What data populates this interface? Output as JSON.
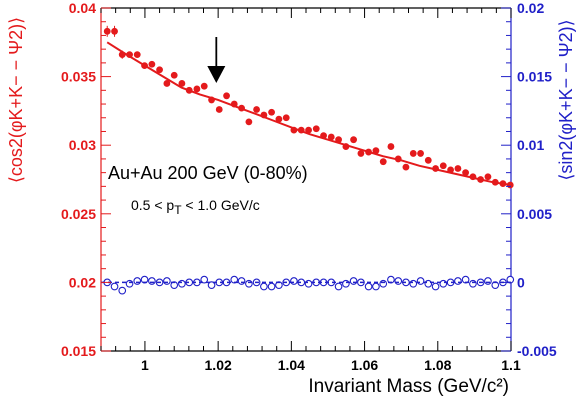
{
  "chart_data": {
    "type": "scatter",
    "xlabel": "Invariant Mass (GeV/c²)",
    "ylabel_left": "⟨cos2(φK+K− − Ψ2)⟩",
    "ylabel_right": "⟨sin2(φK+K− − Ψ2)⟩",
    "xlim": [
      0.988,
      1.1
    ],
    "ylim_left": [
      0.015,
      0.04
    ],
    "ylim_right": [
      -0.005,
      0.02
    ],
    "x_ticks": [
      "1",
      "1.02",
      "1.04",
      "1.06",
      "1.08",
      "1.1"
    ],
    "x_tick_values": [
      1.0,
      1.02,
      1.04,
      1.06,
      1.08,
      1.1
    ],
    "left_ticks": [
      "0.015",
      "0.02",
      "0.025",
      "0.03",
      "0.035",
      "0.04"
    ],
    "left_tick_values": [
      0.015,
      0.02,
      0.025,
      0.03,
      0.035,
      0.04
    ],
    "right_ticks": [
      "-0.005",
      "0",
      "0.005",
      "0.01",
      "0.015",
      "0.02"
    ],
    "right_tick_values": [
      -0.005,
      0,
      0.005,
      0.01,
      0.015,
      0.02
    ],
    "annotations": {
      "system": "Au+Au 200 GeV (0-80%)",
      "pt_prefix": "0.5 < p",
      "pt_sub": "T",
      "pt_suffix": " < 1.0 GeV/c"
    },
    "arrow_at_x": 1.0195,
    "series": [
      {
        "axis": "left",
        "color": "#e41a1c",
        "marker": "filled-circle",
        "x": [
          0.9897,
          0.9917,
          0.9938,
          0.9958,
          0.9979,
          0.9999,
          1.0019,
          1.004,
          1.006,
          1.008,
          1.0101,
          1.0121,
          1.0142,
          1.0162,
          1.0182,
          1.0203,
          1.0223,
          1.0244,
          1.0264,
          1.0284,
          1.0305,
          1.0325,
          1.0346,
          1.0366,
          1.0386,
          1.0407,
          1.0427,
          1.0447,
          1.0468,
          1.0488,
          1.0509,
          1.0529,
          1.0549,
          1.057,
          1.059,
          1.0611,
          1.0631,
          1.0651,
          1.0672,
          1.0692,
          1.0713,
          1.0733,
          1.0753,
          1.0774,
          1.0794,
          1.0815,
          1.0835,
          1.0855,
          1.0876,
          1.0896,
          1.0917,
          1.0937,
          1.0957,
          1.0978,
          1.0998
        ],
        "y": [
          0.0383,
          0.0383,
          0.0366,
          0.0366,
          0.0366,
          0.0358,
          0.0359,
          0.0355,
          0.0345,
          0.0351,
          0.0345,
          0.034,
          0.0341,
          0.0343,
          0.0333,
          0.0326,
          0.0336,
          0.033,
          0.0327,
          0.0317,
          0.0326,
          0.0322,
          0.0324,
          0.0319,
          0.032,
          0.0311,
          0.0311,
          0.0311,
          0.0312,
          0.0307,
          0.0306,
          0.0304,
          0.0299,
          0.0304,
          0.0294,
          0.0295,
          0.0296,
          0.0288,
          0.0299,
          0.029,
          0.0284,
          0.0294,
          0.0294,
          0.0289,
          0.0283,
          0.0285,
          0.0282,
          0.0283,
          0.028,
          0.0277,
          0.0275,
          0.0277,
          0.0273,
          0.0272,
          0.0271
        ],
        "yerr": [
          0.0004,
          0.0004,
          0.0003,
          0.0002,
          0.0002,
          0.0002,
          0.0002,
          0.0002,
          0.0002,
          0.0002,
          0.0002,
          0.0002,
          0.0002,
          0.0002,
          0.0002,
          0.0002,
          0.0002,
          0.0002,
          0.0002,
          0.0002,
          0.0002,
          0.0002,
          0.0002,
          0.0002,
          0.0002,
          0.0002,
          0.0002,
          0.0002,
          0.0002,
          0.0002,
          0.0002,
          0.0002,
          0.0002,
          0.0002,
          0.0002,
          0.0002,
          0.0002,
          0.0002,
          0.0002,
          0.0002,
          0.0002,
          0.0002,
          0.0002,
          0.0002,
          0.0002,
          0.0002,
          0.0002,
          0.0002,
          0.0002,
          0.0002,
          0.0002,
          0.0002,
          0.0002,
          0.0002,
          0.0002
        ]
      },
      {
        "axis": "left",
        "color": "#e41a1c",
        "marker": "line",
        "x": [
          0.9897,
          0.995,
          1.0,
          1.005,
          1.01,
          1.015,
          1.02,
          1.025,
          1.03,
          1.035,
          1.04,
          1.045,
          1.05,
          1.055,
          1.06,
          1.065,
          1.07,
          1.075,
          1.08,
          1.085,
          1.09,
          1.095,
          1.1
        ],
        "y": [
          0.0375,
          0.0366,
          0.0358,
          0.035,
          0.0342,
          0.0337,
          0.0333,
          0.0328,
          0.0323,
          0.0318,
          0.0313,
          0.0308,
          0.0304,
          0.03,
          0.0296,
          0.0292,
          0.0289,
          0.0285,
          0.0282,
          0.0279,
          0.0276,
          0.0273,
          0.0271
        ]
      },
      {
        "axis": "right",
        "color": "#2020c8",
        "marker": "open-circle",
        "x": [
          0.9897,
          0.9917,
          0.9938,
          0.9958,
          0.9979,
          0.9999,
          1.0019,
          1.004,
          1.006,
          1.008,
          1.0101,
          1.0121,
          1.0142,
          1.0162,
          1.0182,
          1.0203,
          1.0223,
          1.0244,
          1.0264,
          1.0284,
          1.0305,
          1.0325,
          1.0346,
          1.0366,
          1.0386,
          1.0407,
          1.0427,
          1.0447,
          1.0468,
          1.0488,
          1.0509,
          1.0529,
          1.0549,
          1.057,
          1.059,
          1.0611,
          1.0631,
          1.0651,
          1.0672,
          1.0692,
          1.0713,
          1.0733,
          1.0753,
          1.0774,
          1.0794,
          1.0815,
          1.0835,
          1.0855,
          1.0876,
          1.0896,
          1.0917,
          1.0937,
          1.0957,
          1.0978,
          1.0998
        ],
        "y": [
          0.0,
          -0.0003,
          -0.0006,
          -0.0001,
          0.0001,
          0.0002,
          0.0001,
          0.0,
          0.0001,
          -0.0002,
          -0.0001,
          0.0,
          0.0,
          0.0002,
          -0.0002,
          0.0,
          0.0,
          0.0002,
          0.0001,
          -0.0001,
          0.0,
          -0.0003,
          -0.0003,
          -0.0002,
          0.0,
          0.0001,
          0.0,
          -0.0001,
          0.0,
          0.0,
          0.0,
          -0.0003,
          -0.0001,
          0.0001,
          0.0,
          -0.0003,
          -0.0003,
          -0.0001,
          0.0002,
          0.0001,
          0.0,
          -0.0001,
          0.0001,
          -0.0001,
          -0.0003,
          -0.0001,
          0.0,
          0.0001,
          0.0002,
          -0.0001,
          0.0,
          0.0001,
          -0.0002,
          0.0,
          0.0002
        ]
      },
      {
        "axis": "right",
        "color": "#2020c8",
        "marker": "dashed-line",
        "x": [
          0.988,
          1.1
        ],
        "y": [
          0.0,
          0.0
        ]
      }
    ]
  }
}
